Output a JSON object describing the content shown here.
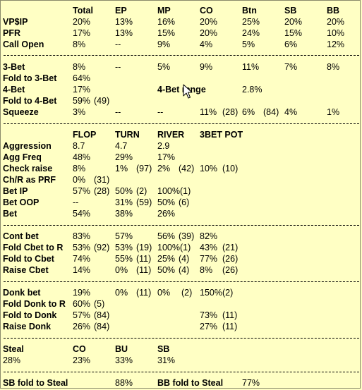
{
  "preflop": {
    "headers": [
      "Total",
      "EP",
      "MP",
      "CO",
      "Btn",
      "SB",
      "BB"
    ],
    "rows": [
      {
        "label": "VP$IP",
        "cells": [
          "20%",
          "13%",
          "16%",
          "20%",
          "25%",
          "20%",
          "20%"
        ]
      },
      {
        "label": "PFR",
        "cells": [
          "17%",
          "13%",
          "15%",
          "20%",
          "24%",
          "15%",
          "10%"
        ]
      },
      {
        "label": "Call Open",
        "cells": [
          "8%",
          "--",
          "9%",
          "4%",
          "5%",
          "6%",
          "12%"
        ]
      }
    ]
  },
  "threebet": {
    "three_bet": {
      "label": "3-Bet",
      "cells": [
        "8%",
        "--",
        "5%",
        "9%",
        "11%",
        "7%",
        "8%"
      ]
    },
    "fold_to_3bet": {
      "label": "Fold to 3-Bet",
      "total": "64%"
    },
    "four_bet": {
      "label": "4-Bet",
      "total": "17%",
      "range_label": "4-Bet range",
      "range_value": "2.8%"
    },
    "fold_to_4bet": {
      "label": "Fold to 4-Bet",
      "total": "59%",
      "count": "(49)"
    },
    "squeeze": {
      "label": "Squeeze",
      "total": "3%",
      "ep": "--",
      "mp": "--",
      "co": "11%",
      "co_n": "(28)",
      "btn": "6%",
      "btn_n": "(84)",
      "sb": "4%",
      "bb": "1%"
    }
  },
  "postflop": {
    "headers": [
      "FLOP",
      "TURN",
      "RIVER",
      "3BET POT"
    ],
    "aggression": {
      "label": "Aggression",
      "flop": "8.7",
      "turn": "4.7",
      "river": "2.9"
    },
    "agg_freq": {
      "label": "Agg Freq",
      "flop": "48%",
      "turn": "29%",
      "river": "17%"
    },
    "check_raise": {
      "label": "Check raise",
      "flop": "8%",
      "turn": "1%",
      "turn_n": "(97)",
      "river": "2%",
      "river_n": "(42)",
      "pot3": "10%",
      "pot3_n": "(10)"
    },
    "cr_as_prf": {
      "label": "Ch/R as PRF",
      "flop": "0%",
      "flop_n": "(31)"
    },
    "bet_ip": {
      "label": "Bet IP",
      "flop": "57%",
      "flop_n": "(28)",
      "turn": "50%",
      "turn_n": "(2)",
      "river": "100%(1)"
    },
    "bet_oop": {
      "label": "Bet OOP",
      "flop": "--",
      "turn": "31%",
      "turn_n": "(59)",
      "river": "50%",
      "river_n": "(6)"
    },
    "bet": {
      "label": "Bet",
      "flop": "54%",
      "turn": "38%",
      "river": "26%"
    }
  },
  "cbet": {
    "cont_bet": {
      "label": "Cont bet",
      "flop": "83%",
      "turn": "57%",
      "river": "56%",
      "river_n": "(39)",
      "pot3": "82%"
    },
    "fold_cbet_r": {
      "label": "Fold Cbet to R",
      "flop": "53%",
      "flop_n": "(92)",
      "turn": "53%",
      "turn_n": "(19)",
      "river": "100%(1)",
      "pot3": "43%",
      "pot3_n": "(21)"
    },
    "fold_to_cbet": {
      "label": "Fold to Cbet",
      "flop": "74%",
      "turn": "55%",
      "turn_n": "(11)",
      "river": "25%",
      "river_n": "(4)",
      "pot3": "77%",
      "pot3_n": "(26)"
    },
    "raise_cbet": {
      "label": "Raise Cbet",
      "flop": "14%",
      "turn": "0%",
      "turn_n": "(11)",
      "river": "50%",
      "river_n": "(4)",
      "pot3": "8%",
      "pot3_n": "(26)"
    }
  },
  "donk": {
    "donk_bet": {
      "label": "Donk bet",
      "flop": "19%",
      "turn": "0%",
      "turn_n": "(11)",
      "river": "0%",
      "river_n": "(2)",
      "pot3": "150%(2)"
    },
    "fold_donk_r": {
      "label": "Fold Donk to R",
      "flop": "60%",
      "flop_n": "(5)"
    },
    "fold_to_donk": {
      "label": "Fold to Donk",
      "flop": "57%",
      "flop_n": "(84)",
      "pot3": "73%",
      "pot3_n": "(11)"
    },
    "raise_donk": {
      "label": "Raise Donk",
      "flop": "26%",
      "flop_n": "(84)",
      "pot3": "27%",
      "pot3_n": "(11)"
    }
  },
  "steal": {
    "headers": {
      "steal": "Steal",
      "co": "CO",
      "bu": "BU",
      "sb": "SB"
    },
    "values": {
      "total": "28%",
      "co": "23%",
      "bu": "33%",
      "sb": "31%"
    }
  },
  "fold_to_steal": {
    "sb_label": "SB fold to Steal",
    "sb_value": "88%",
    "bb_label": "BB fold to Steal",
    "bb_value": "77%"
  },
  "icons": {
    "cursor": "mouse-pointer-icon"
  }
}
